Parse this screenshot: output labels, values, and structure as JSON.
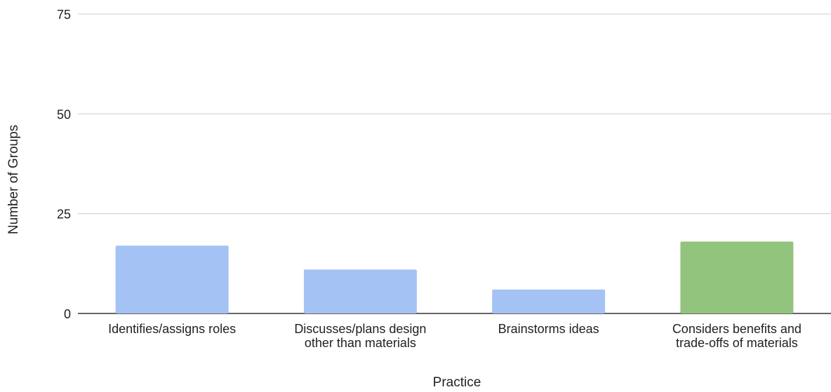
{
  "chart_data": {
    "type": "bar",
    "title": "",
    "xlabel": "Practice",
    "ylabel": "Number of Groups",
    "ylim": [
      0,
      75
    ],
    "yticks": [
      0,
      25,
      50,
      75
    ],
    "grid": true,
    "legend": "none",
    "categories": [
      [
        "Identifies/assigns roles"
      ],
      [
        "Discusses/plans design",
        "other than materials"
      ],
      [
        "Brainstorms ideas"
      ],
      [
        "Considers benefits and",
        "trade-offs of materials"
      ]
    ],
    "values": [
      17,
      11,
      6,
      18
    ],
    "bar_colors": [
      "#a4c2f4",
      "#a4c2f4",
      "#a4c2f4",
      "#93c47d"
    ],
    "colors": {
      "grid": "#cccccc",
      "baseline": "#333333",
      "text": "#222222"
    }
  }
}
